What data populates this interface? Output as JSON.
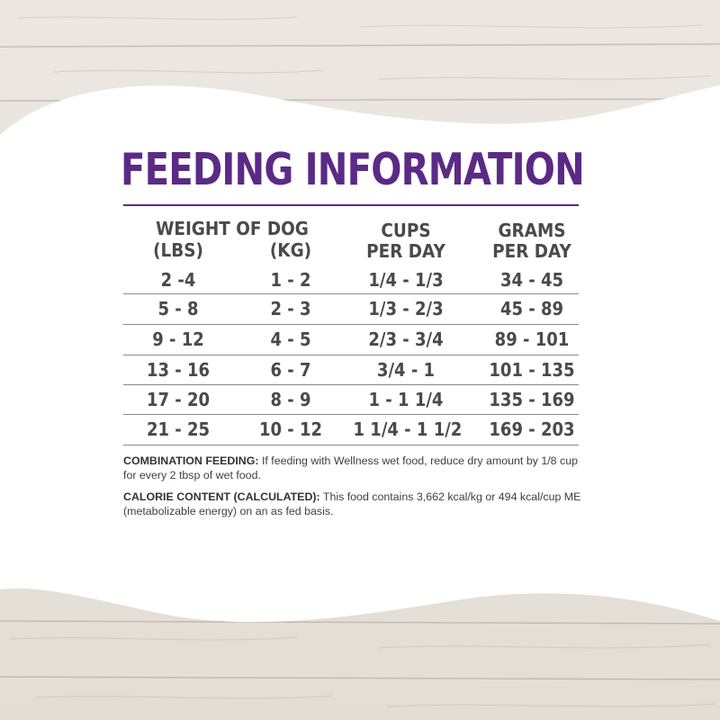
{
  "title": "FEEDING INFORMATION",
  "headers": {
    "weight_of_dog": "WEIGHT OF DOG",
    "lbs": "(LBS)",
    "kg": "(KG)",
    "cups_line1": "CUPS",
    "cups_line2": "PER DAY",
    "grams_line1": "GRAMS",
    "grams_line2": "PER DAY"
  },
  "rows": [
    {
      "lbs": "2 -4",
      "kg": "1 - 2",
      "cups": "1/4 - 1/3",
      "grams": "34 - 45"
    },
    {
      "lbs": "5 - 8",
      "kg": "2 - 3",
      "cups": "1/3 - 2/3",
      "grams": "45 - 89"
    },
    {
      "lbs": "9 - 12",
      "kg": "4 - 5",
      "cups": "2/3 - 3/4",
      "grams": "89 - 101"
    },
    {
      "lbs": "13 - 16",
      "kg": "6 - 7",
      "cups": "3/4 - 1",
      "grams": "101 - 135"
    },
    {
      "lbs": "17 - 20",
      "kg": "8 - 9",
      "cups": "1 - 1 1/4",
      "grams": "135 - 169"
    },
    {
      "lbs": "21 - 25",
      "kg": "10 - 12",
      "cups": "1 1/4 - 1 1/2",
      "grams": "169 - 203"
    }
  ],
  "notes": {
    "combination_label": "COMBINATION FEEDING:",
    "combination_text": " If feeding with Wellness wet food, reduce dry amount by 1/8 cup for every 2 tbsp of wet food.",
    "calorie_label": "CALORIE CONTENT (CALCULATED):",
    "calorie_text": " This food contains 3,662 kcal/kg or 494 kcal/cup ME (metabolizable energy) on an as fed basis."
  },
  "colors": {
    "title_purple": "#5b2a86",
    "text_gray": "#4a4a4a",
    "wood": "#e7e1da"
  }
}
